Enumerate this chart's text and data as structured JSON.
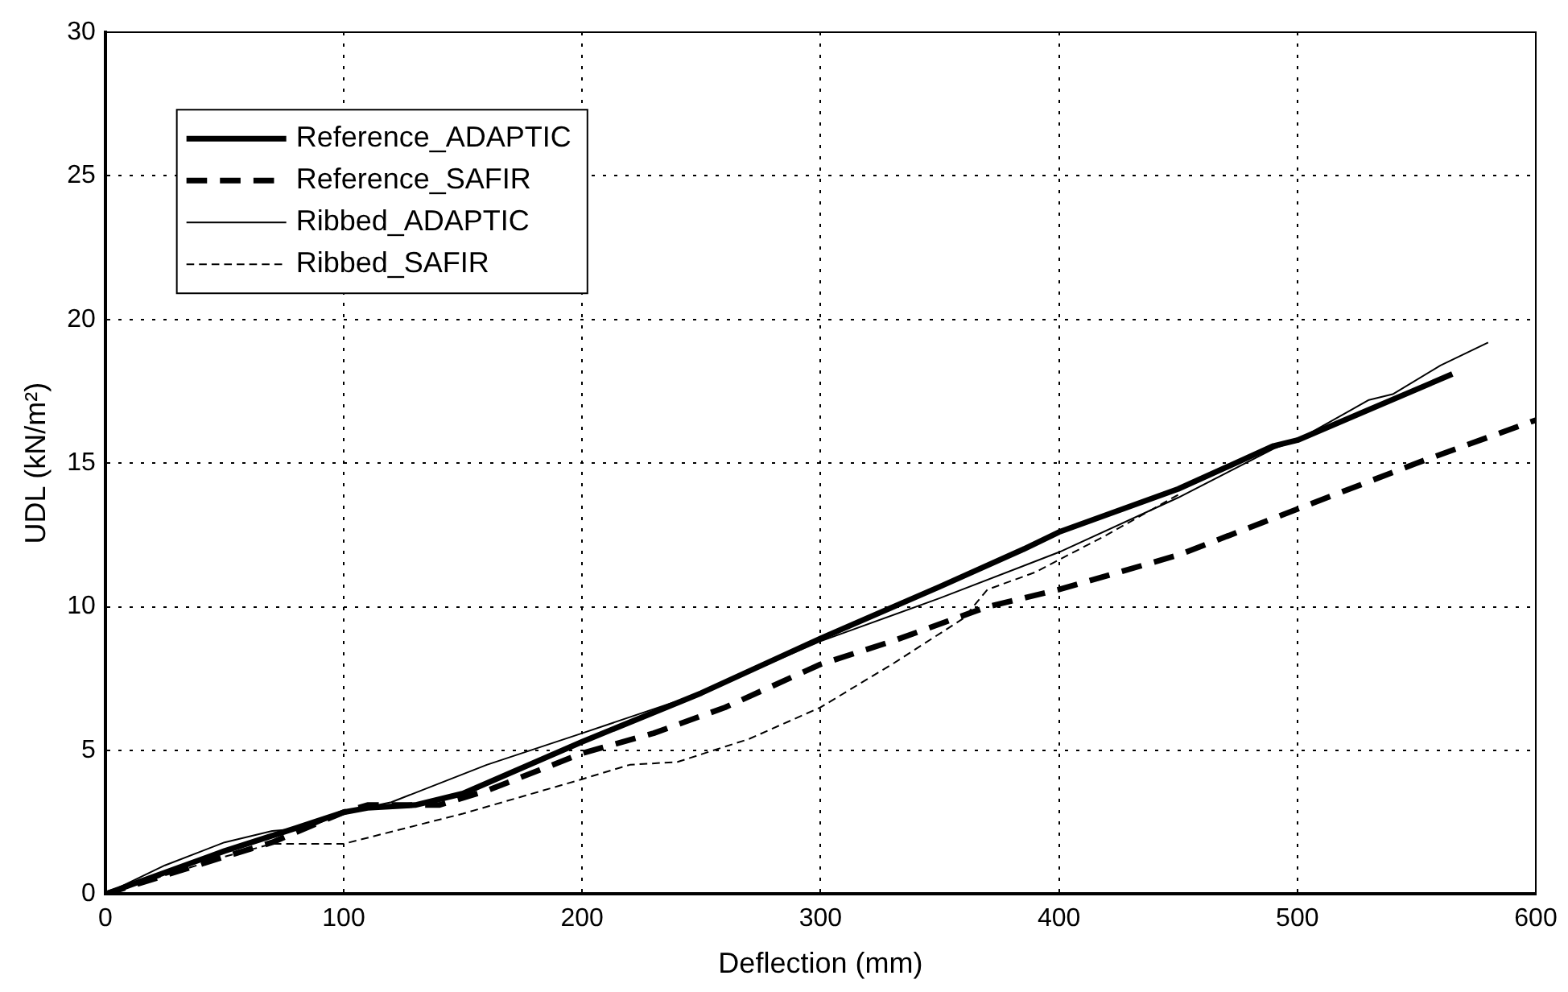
{
  "chart_data": {
    "type": "line",
    "xlabel": "Deflection (mm)",
    "ylabel": "UDL (kN/m²)",
    "xlim": [
      0,
      600
    ],
    "xticks": [
      0,
      100,
      200,
      300,
      400,
      500,
      600
    ],
    "ylim": [
      0,
      30
    ],
    "yticks": [
      0,
      5,
      10,
      15,
      20,
      25,
      30
    ],
    "grid": true,
    "legend": "top left",
    "marker": "none",
    "series": [
      {
        "name": "Reference_ADAPTIC",
        "color": "#000000",
        "line_style": "solid",
        "x": [
          0,
          50,
          80,
          100,
          110,
          130,
          150,
          200,
          250,
          300,
          350,
          385,
          400,
          450,
          490,
          500,
          565
        ],
        "values": [
          0,
          1.5,
          2.3,
          2.85,
          3.0,
          3.1,
          3.5,
          5.3,
          7.0,
          8.9,
          10.7,
          12.0,
          12.6,
          14.1,
          15.6,
          15.8,
          18.1
        ]
      },
      {
        "name": "Reference_SAFIR",
        "color": "#000000",
        "line_style": "dashed",
        "x": [
          0,
          50,
          70,
          100,
          110,
          140,
          160,
          200,
          230,
          260,
          300,
          330,
          370,
          400,
          450,
          500,
          550,
          600
        ],
        "values": [
          0,
          1.3,
          1.8,
          2.85,
          3.1,
          3.1,
          3.6,
          4.9,
          5.6,
          6.5,
          8.0,
          8.8,
          10.0,
          10.6,
          11.8,
          13.4,
          15.0,
          16.5
        ]
      },
      {
        "name": "Ribbed_ADAPTIC",
        "color": "#000000",
        "line_style": "solid",
        "x": [
          0,
          25,
          50,
          70,
          85,
          100,
          120,
          160,
          200,
          250,
          300,
          350,
          400,
          450,
          490,
          500,
          530,
          540,
          560,
          580
        ],
        "values": [
          0,
          1.0,
          1.8,
          2.2,
          2.3,
          2.85,
          3.2,
          4.5,
          5.6,
          7.0,
          8.8,
          10.3,
          11.9,
          13.8,
          15.5,
          15.8,
          17.2,
          17.4,
          18.4,
          19.2
        ]
      },
      {
        "name": "Ribbed_SAFIR",
        "color": "#000000",
        "line_style": "dashed",
        "x": [
          0,
          50,
          70,
          100,
          150,
          200,
          220,
          240,
          270,
          300,
          330,
          360,
          370,
          390,
          420,
          450
        ],
        "values": [
          0,
          1.3,
          1.75,
          1.75,
          2.8,
          4.0,
          4.5,
          4.6,
          5.4,
          6.5,
          8.0,
          9.6,
          10.6,
          11.2,
          12.5,
          13.9
        ]
      }
    ]
  }
}
